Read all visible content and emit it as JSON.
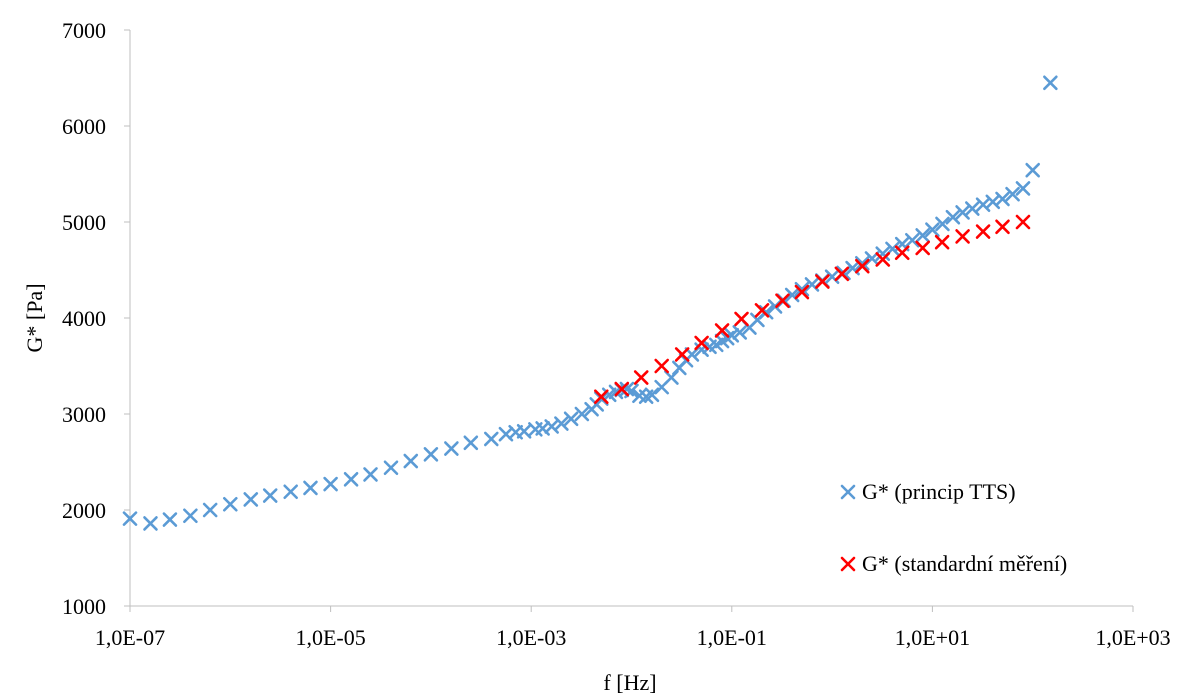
{
  "chart_data": {
    "type": "scatter",
    "xlabel": "f [Hz]",
    "ylabel": "G* [Pa]",
    "x_scale": "log",
    "xlim": [
      1e-07,
      1000
    ],
    "ylim": [
      1000,
      7000
    ],
    "x_ticks": [
      1e-07,
      1e-05,
      0.001,
      0.1,
      10,
      1000
    ],
    "x_tick_labels": [
      "1,0E-07",
      "1,0E-05",
      "1,0E-03",
      "1,0E-01",
      "1,0E+01",
      "1,0E+03"
    ],
    "y_ticks": [
      1000,
      2000,
      3000,
      4000,
      5000,
      6000,
      7000
    ],
    "y_tick_labels": [
      "1000",
      "2000",
      "3000",
      "4000",
      "5000",
      "6000",
      "7000"
    ],
    "grid": false,
    "legend_position": "bottom-right",
    "marker": "x",
    "series": [
      {
        "name": "G* (princip TTS)",
        "color": "#5B9BD5",
        "x": [
          1e-07,
          1.6e-07,
          2.5e-07,
          4e-07,
          6.3e-07,
          1e-06,
          1.6e-06,
          2.5e-06,
          4e-06,
          6.3e-06,
          1e-05,
          1.6e-05,
          2.5e-05,
          4e-05,
          6.3e-05,
          0.0001,
          0.00016,
          0.00025,
          0.0004,
          0.00056,
          0.0007,
          0.00085,
          0.0011,
          0.0013,
          0.0016,
          0.002,
          0.0025,
          0.0032,
          0.004,
          0.0045,
          0.005,
          0.006,
          0.007,
          0.008,
          0.009,
          0.01,
          0.012,
          0.014,
          0.016,
          0.02,
          0.025,
          0.03,
          0.035,
          0.04,
          0.05,
          0.06,
          0.07,
          0.08,
          0.09,
          0.1,
          0.12,
          0.15,
          0.18,
          0.22,
          0.27,
          0.33,
          0.4,
          0.5,
          0.63,
          0.8,
          1.0,
          1.3,
          1.6,
          2.0,
          2.5,
          3.2,
          4.0,
          5.0,
          6.3,
          8.0,
          10,
          12.6,
          16,
          20,
          25,
          32,
          40,
          50,
          63,
          80,
          100,
          150
        ],
        "y": [
          1910,
          1860,
          1900,
          1940,
          2000,
          2060,
          2110,
          2150,
          2190,
          2230,
          2270,
          2320,
          2370,
          2440,
          2510,
          2580,
          2640,
          2700,
          2740,
          2790,
          2810,
          2820,
          2840,
          2850,
          2870,
          2900,
          2950,
          3000,
          3050,
          3100,
          3160,
          3200,
          3230,
          3250,
          3260,
          3240,
          3190,
          3180,
          3200,
          3280,
          3380,
          3480,
          3560,
          3620,
          3670,
          3700,
          3720,
          3760,
          3790,
          3820,
          3850,
          3900,
          3980,
          4060,
          4120,
          4180,
          4240,
          4300,
          4350,
          4390,
          4430,
          4470,
          4520,
          4570,
          4620,
          4670,
          4720,
          4770,
          4810,
          4860,
          4920,
          4980,
          5050,
          5100,
          5140,
          5180,
          5210,
          5240,
          5290,
          5350,
          5540,
          6450
        ]
      },
      {
        "name": "G* (standardní měření)",
        "color": "#FF0000",
        "x": [
          0.005,
          0.008,
          0.0125,
          0.02,
          0.032,
          0.05,
          0.08,
          0.125,
          0.2,
          0.32,
          0.5,
          0.8,
          1.25,
          2.0,
          3.2,
          5.0,
          8.0,
          12.5,
          20,
          32,
          50,
          80
        ],
        "y": [
          3180,
          3260,
          3380,
          3500,
          3620,
          3740,
          3870,
          3990,
          4080,
          4180,
          4270,
          4380,
          4460,
          4540,
          4610,
          4680,
          4730,
          4790,
          4850,
          4900,
          4950,
          5000
        ]
      }
    ]
  }
}
